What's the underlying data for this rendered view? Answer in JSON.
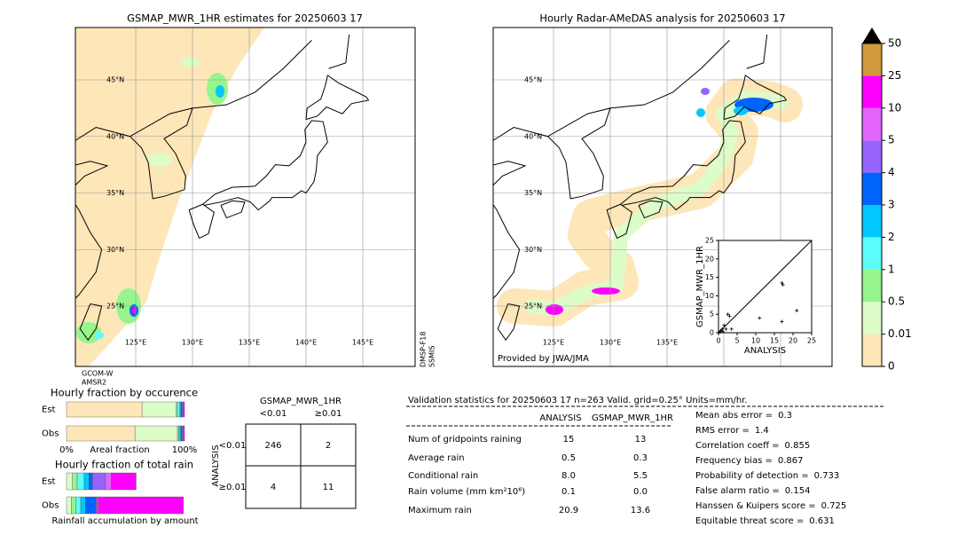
{
  "left_map": {
    "title": "GSMAP_MWR_1HR estimates for 20250603 17",
    "lat_labels": [
      "45°N",
      "40°N",
      "35°N",
      "30°N",
      "25°N"
    ],
    "lon_labels": [
      "125°E",
      "130°E",
      "135°E",
      "140°E",
      "145°E"
    ],
    "satellite_labels": [
      "GCOM-W",
      "AMSR2"
    ],
    "side_labels": [
      "DMSP-F18",
      "SSMIS"
    ]
  },
  "right_map": {
    "title": "Hourly Radar-AMeDAS analysis for 20250603 17",
    "lat_labels": [
      "45°N",
      "40°N",
      "35°N",
      "30°N",
      "25°N"
    ],
    "lon_labels": [
      "125°E",
      "130°E",
      "135°E"
    ],
    "credit": "Provided by JWA/JMA"
  },
  "colorbar": {
    "levels": [
      0,
      0.01,
      0.5,
      1,
      2,
      3,
      4,
      5,
      10,
      25,
      50
    ],
    "colors": [
      "#fde6b8",
      "#dcfcc8",
      "#96f58c",
      "#5cfcfc",
      "#00c8fc",
      "#0064fc",
      "#9664fc",
      "#e264fc",
      "#fc00fc",
      "#d09a3c"
    ],
    "extend_color": "#000000"
  },
  "scatter": {
    "type": "scatter",
    "xlabel": "ANALYSIS",
    "ylabel": "GSMAP_MWR_1HR",
    "xlim": [
      0,
      25
    ],
    "ylim": [
      0,
      25
    ],
    "xticks": [
      0,
      5,
      10,
      15,
      20,
      25
    ],
    "yticks": [
      0,
      5,
      10,
      15,
      20,
      25
    ],
    "x": [
      0.3,
      0.6,
      1,
      1.5,
      2,
      2.5,
      3,
      3.5,
      1.2,
      11,
      17,
      17.3,
      17,
      21
    ],
    "y": [
      0.2,
      0.5,
      1,
      2,
      1,
      5,
      4.5,
      1,
      0.3,
      4,
      13.5,
      13,
      3,
      6
    ]
  },
  "occurrence": {
    "type": "bar",
    "title": "Hourly fraction by occurence",
    "categories": [
      "Est",
      "Obs"
    ],
    "xlabel": "Areal fraction",
    "xlim": [
      0,
      100
    ],
    "xticks": [
      {
        "value": 0,
        "label": "0%"
      },
      {
        "value": 100,
        "label": "100%"
      }
    ],
    "series": [
      {
        "color": "#fde6b8",
        "values": [
          64,
          58
        ]
      },
      {
        "color": "#dcfcc8",
        "values": [
          29,
          36
        ]
      },
      {
        "color": "#96f58c",
        "values": [
          1,
          1
        ]
      },
      {
        "color": "#5cfcfc",
        "values": [
          2,
          1
        ]
      },
      {
        "color": "#00c8fc",
        "values": [
          1,
          1
        ]
      },
      {
        "color": "#0064fc",
        "values": [
          1,
          1
        ]
      },
      {
        "color": "#9664fc",
        "values": [
          1,
          1
        ]
      },
      {
        "color": "#e264fc",
        "values": [
          0,
          0
        ]
      },
      {
        "color": "#fc00fc",
        "values": [
          1,
          1
        ]
      },
      {
        "color": "#d09a3c",
        "values": [
          0,
          0
        ]
      }
    ]
  },
  "total_rain": {
    "type": "bar",
    "title": "Hourly fraction of total rain",
    "categories": [
      "Est",
      "Obs"
    ],
    "xlabel": "Rainfall accumulation by amount",
    "xlim": [
      0,
      100
    ],
    "series": [
      {
        "color": "#fde6b8",
        "values": [
          0,
          0
        ]
      },
      {
        "color": "#dcfcc8",
        "values": [
          5,
          4
        ]
      },
      {
        "color": "#96f58c",
        "values": [
          4,
          4
        ]
      },
      {
        "color": "#5cfcfc",
        "values": [
          6,
          4
        ]
      },
      {
        "color": "#00c8fc",
        "values": [
          4,
          4
        ]
      },
      {
        "color": "#0064fc",
        "values": [
          3,
          9
        ]
      },
      {
        "color": "#9664fc",
        "values": [
          11,
          1
        ]
      },
      {
        "color": "#e264fc",
        "values": [
          5,
          1
        ]
      },
      {
        "color": "#fc00fc",
        "values": [
          21,
          72
        ]
      },
      {
        "color": "#d09a3c",
        "values": [
          0,
          0
        ]
      }
    ]
  },
  "contingency": {
    "title": "GSMAP_MWR_1HR",
    "columns": [
      "<0.01",
      "≥0.01"
    ],
    "row_title": "ANALYSIS",
    "rows": [
      "<0.01",
      "≥0.01"
    ],
    "cells": [
      [
        246,
        2
      ],
      [
        4,
        11
      ]
    ]
  },
  "validation": {
    "title": "Validation statistics for 20250603 17  n=263 Valid. grid=0.25° Units=mm/hr.",
    "headers": [
      "ANALYSIS",
      "GSMAP_MWR_1HR"
    ],
    "rows": [
      {
        "label": "Num of gridpoints raining",
        "values": [
          "15",
          "13"
        ]
      },
      {
        "label": "Average rain",
        "values": [
          "0.5",
          "0.3"
        ]
      },
      {
        "label": "Conditional rain",
        "values": [
          "8.0",
          "5.5"
        ]
      },
      {
        "label": "Rain volume (mm km²10⁶)",
        "values": [
          "0.1",
          "0.0"
        ]
      },
      {
        "label": "Maximum rain",
        "values": [
          "20.9",
          "13.6"
        ]
      }
    ],
    "scores": [
      {
        "label": "Mean abs error =",
        "value": "0.3"
      },
      {
        "label": "RMS error =",
        "value": "1.4"
      },
      {
        "label": "Correlation coeff =",
        "value": "0.855"
      },
      {
        "label": "Frequency bias =",
        "value": "0.867"
      },
      {
        "label": "Probability of detection =",
        "value": "0.733"
      },
      {
        "label": "False alarm ratio =",
        "value": "0.154"
      },
      {
        "label": "Hanssen & Kuipers score =",
        "value": "0.725"
      },
      {
        "label": "Equitable threat score =",
        "value": "0.631"
      }
    ]
  }
}
